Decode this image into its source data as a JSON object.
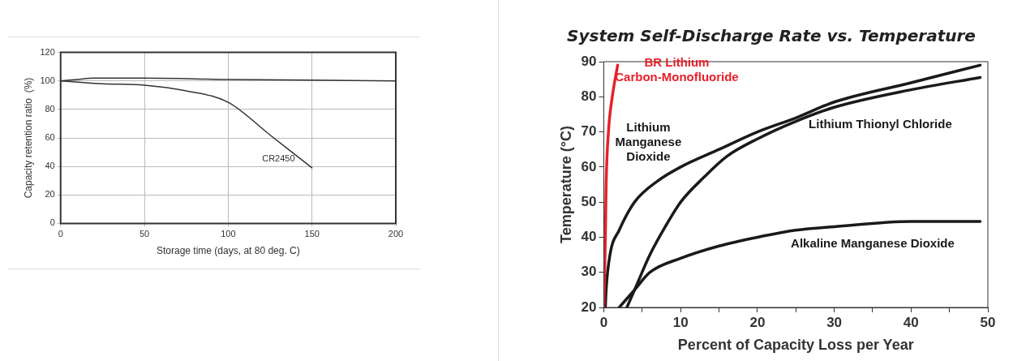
{
  "chart_data": [
    {
      "type": "line",
      "xlabel": "Storage time (days, at 80 deg. C)",
      "ylabel": "Capacity retention ratio  (%)",
      "xlim": [
        0,
        200
      ],
      "xticks": [
        0,
        50,
        100,
        150,
        200
      ],
      "ylim": [
        0,
        120
      ],
      "yticks": [
        0,
        20,
        40,
        60,
        80,
        100,
        120
      ],
      "grid": true,
      "legend": false,
      "marker": "none",
      "line_style": "solid",
      "series": [
        {
          "color": "#333333",
          "x": [
            0,
            10,
            20,
            30,
            50,
            100,
            150,
            200
          ],
          "values": [
            100,
            101,
            102,
            102,
            102,
            101,
            100.5,
            100
          ]
        },
        {
          "name": "CR2450",
          "color": "#333333",
          "x": [
            0,
            25,
            50,
            75,
            100,
            125,
            150
          ],
          "values": [
            100,
            98,
            97,
            93,
            85,
            62,
            39
          ]
        }
      ]
    },
    {
      "type": "line",
      "title": "System Self-Discharge Rate vs. Temperature",
      "xlabel": "Percent of Capacity Loss per Year",
      "ylabel": "Temperature (°C)",
      "xlim": [
        0,
        50
      ],
      "xticks": [
        0,
        {
          "value": 5,
          "label": null
        },
        10,
        {
          "value": 15,
          "label": null
        },
        20,
        {
          "value": 25,
          "label": null
        },
        30,
        {
          "value": 35,
          "label": null
        },
        40,
        {
          "value": 45,
          "label": null
        },
        50
      ],
      "ylim": [
        20,
        90
      ],
      "yticks": [
        20,
        30,
        40,
        50,
        60,
        70,
        80,
        90
      ],
      "grid": false,
      "legend": false,
      "marker": "none",
      "line_style": "solid",
      "series": [
        {
          "name": "BR Lithium Carbon-Monofluoride",
          "color": "#e8202a",
          "x": [
            0,
            0.2,
            0.3,
            0.6,
            1.1,
            1.8
          ],
          "values": [
            20,
            40,
            55,
            70,
            80,
            89
          ]
        },
        {
          "name": "Lithium Manganese Dioxide",
          "color": "#1a1a1a",
          "x": [
            0.2,
            0.3,
            0.8,
            2,
            4,
            7,
            10,
            15,
            20,
            25,
            30,
            40,
            49
          ],
          "values": [
            20,
            25,
            35,
            42,
            50,
            56,
            60,
            65,
            70,
            74,
            78.5,
            84,
            89
          ]
        },
        {
          "name": "Lithium Thionyl Chloride",
          "color": "#1a1a1a",
          "x": [
            3,
            4,
            6,
            8,
            10,
            13,
            16,
            20,
            25,
            30,
            40,
            49
          ],
          "values": [
            20,
            25,
            35,
            43,
            50,
            57,
            63,
            68,
            73,
            77,
            82,
            85.5
          ]
        },
        {
          "name": "Alkaline Manganese Dioxide",
          "color": "#1a1a1a",
          "x": [
            2,
            4,
            6,
            10,
            15,
            20,
            25,
            30,
            40,
            49
          ],
          "values": [
            20,
            25,
            30,
            34,
            37.5,
            40,
            42,
            43,
            44.5,
            44.5
          ]
        }
      ]
    }
  ]
}
